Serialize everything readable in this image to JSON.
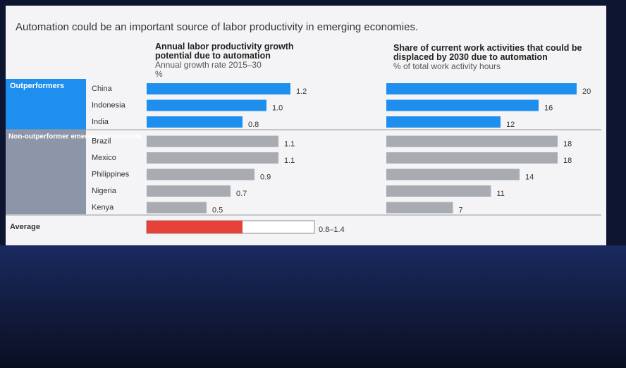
{
  "slide_title": "Automation could be an important source of labor productivity in emerging economies.",
  "groups": [
    "Outperformers",
    "Non-outperformer emerging economies"
  ],
  "average_label": "Average",
  "chart_data": [
    {
      "type": "bar",
      "orientation": "horizontal",
      "title": "Annual labor productivity growth potential due to automation",
      "subtitle": "Annual growth rate 2015–30",
      "unit": "%",
      "categories": [
        "China",
        "Indonesia",
        "India",
        "Brazil",
        "Mexico",
        "Philippines",
        "Nigeria",
        "Kenya"
      ],
      "values": [
        1.2,
        1.0,
        0.8,
        1.1,
        1.1,
        0.9,
        0.7,
        0.5
      ],
      "value_labels": [
        "1.2",
        "1.0",
        "0.8",
        "1.1",
        "1.1",
        "0.9",
        "0.7",
        "0.5"
      ],
      "colors": [
        "#1e8fef",
        "#1e8fef",
        "#1e8fef",
        "#a9abb3",
        "#a9abb3",
        "#a9abb3",
        "#a9abb3",
        "#a9abb3"
      ],
      "average": {
        "low": 0.8,
        "high": 1.4,
        "label": "0.8–1.4",
        "color": "#e8413a"
      },
      "xlim": [
        0,
        1.4
      ]
    },
    {
      "type": "bar",
      "orientation": "horizontal",
      "title": "Share of current work activities that could be displaced by 2030 due to automation",
      "subtitle": "% of total work activity hours",
      "values": [
        20,
        16,
        12,
        18,
        18,
        14,
        11,
        7
      ],
      "colors": [
        "#1e8fef",
        "#1e8fef",
        "#1e8fef",
        "#a9abb3",
        "#a9abb3",
        "#a9abb3",
        "#a9abb3",
        "#a9abb3"
      ],
      "xlim": [
        0,
        22
      ]
    }
  ]
}
